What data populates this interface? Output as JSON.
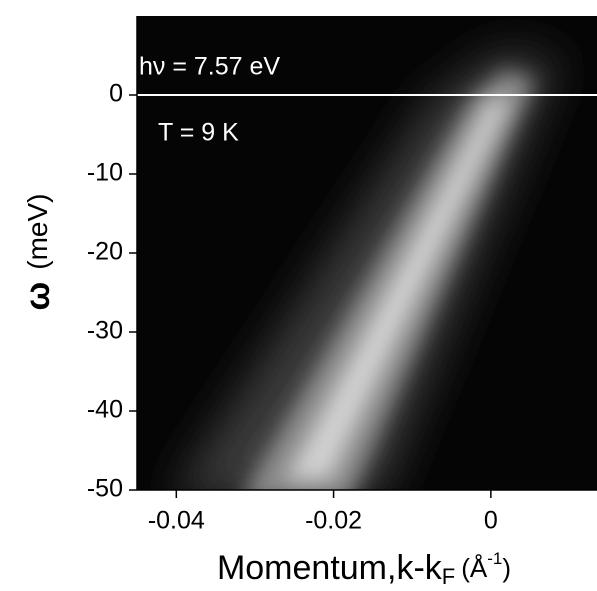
{
  "chart_data": {
    "type": "heatmap",
    "annotations": [
      "hν = 7.57 eV",
      "T = 9 K"
    ],
    "x_label": {
      "text": "Momentum,k-k",
      "sub": "F",
      "unit": "(Å",
      "sup": "-1",
      "close": ")"
    },
    "y_label": {
      "symbol": "ω",
      "unit": "(meV)"
    },
    "xlim": [
      -0.045,
      0.0135
    ],
    "xticks": [
      -0.04,
      -0.02,
      0
    ],
    "ylim": [
      -50,
      10
    ],
    "yticks": [
      0,
      -10,
      -20,
      -30,
      -40,
      -50
    ],
    "reference_line": 0
  }
}
